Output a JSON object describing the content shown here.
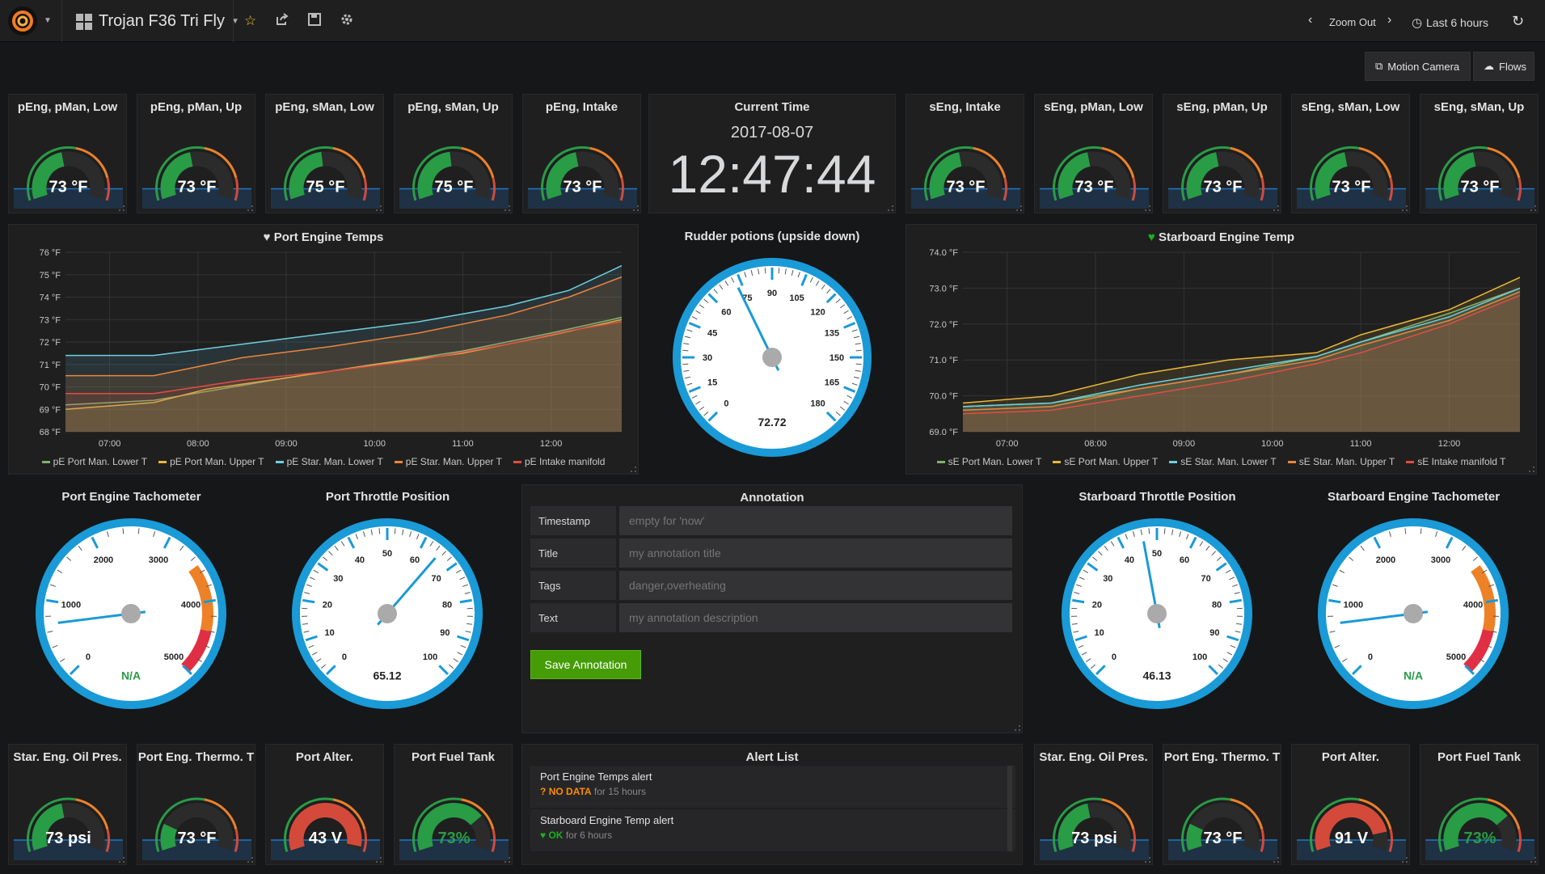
{
  "nav": {
    "dashboard_title": "Trojan F36 Tri Fly",
    "zoom_out": "Zoom Out",
    "time_range": "Last 6 hours"
  },
  "links": {
    "motion_camera": "Motion Camera",
    "flows": "Flows"
  },
  "top_gauges_left": [
    {
      "title": "pEng, pMan, Low",
      "value": "73 °F",
      "fraction": 0.45
    },
    {
      "title": "pEng, pMan, Up",
      "value": "73 °F",
      "fraction": 0.45
    },
    {
      "title": "pEng, sMan, Low",
      "value": "75 °F",
      "fraction": 0.47
    },
    {
      "title": "pEng, sMan, Up",
      "value": "75 °F",
      "fraction": 0.47
    },
    {
      "title": "pEng, Intake",
      "value": "73 °F",
      "fraction": 0.45
    }
  ],
  "top_gauges_right": [
    {
      "title": "sEng, Intake",
      "value": "73 °F",
      "fraction": 0.45
    },
    {
      "title": "sEng, pMan, Low",
      "value": "73 °F",
      "fraction": 0.45
    },
    {
      "title": "sEng, pMan, Up",
      "value": "73 °F",
      "fraction": 0.45
    },
    {
      "title": "sEng, sMan, Low",
      "value": "73 °F",
      "fraction": 0.45
    },
    {
      "title": "sEng, sMan, Up",
      "value": "73 °F",
      "fraction": 0.45
    }
  ],
  "current_time": {
    "title": "Current Time",
    "date": "2017-08-07",
    "time": "12:47:44"
  },
  "port_chart": {
    "title": "Port Engine Temps",
    "chart_data": {
      "type": "line",
      "ylim": [
        68,
        76
      ],
      "y_ticks": [
        "68 °F",
        "69 °F",
        "70 °F",
        "71 °F",
        "72 °F",
        "73 °F",
        "74 °F",
        "75 °F",
        "76 °F"
      ],
      "x_ticks": [
        "07:00",
        "08:00",
        "09:00",
        "10:00",
        "11:00",
        "12:00"
      ],
      "x_hours": [
        6.5,
        12.8
      ],
      "series": [
        {
          "name": "pE Port Man. Lower T",
          "color": "#7eb26d",
          "points": [
            [
              6.5,
              69.2
            ],
            [
              7.5,
              69.4
            ],
            [
              8.1,
              69.8
            ],
            [
              9.0,
              70.4
            ],
            [
              10.0,
              71.0
            ],
            [
              11.0,
              71.6
            ],
            [
              12.0,
              72.4
            ],
            [
              12.8,
              73.1
            ]
          ]
        },
        {
          "name": "pE Port Man. Upper T",
          "color": "#eab839",
          "points": [
            [
              6.5,
              69.0
            ],
            [
              7.5,
              69.3
            ],
            [
              8.1,
              69.9
            ],
            [
              9.0,
              70.4
            ],
            [
              10.0,
              71.0
            ],
            [
              11.0,
              71.5
            ],
            [
              12.0,
              72.3
            ],
            [
              12.8,
              73.0
            ]
          ]
        },
        {
          "name": "pE Star. Man. Lower T",
          "color": "#6ed0e0",
          "points": [
            [
              6.5,
              71.4
            ],
            [
              7.5,
              71.4
            ],
            [
              8.5,
              71.9
            ],
            [
              9.5,
              72.4
            ],
            [
              10.5,
              72.9
            ],
            [
              11.5,
              73.6
            ],
            [
              12.2,
              74.3
            ],
            [
              12.8,
              75.4
            ]
          ]
        },
        {
          "name": "pE Star. Man. Upper T",
          "color": "#ef843c",
          "points": [
            [
              6.5,
              70.5
            ],
            [
              7.5,
              70.5
            ],
            [
              8.5,
              71.3
            ],
            [
              9.5,
              71.8
            ],
            [
              10.5,
              72.4
            ],
            [
              11.5,
              73.2
            ],
            [
              12.2,
              74.0
            ],
            [
              12.8,
              74.9
            ]
          ]
        },
        {
          "name": "pE Intake manifold",
          "color": "#e24d42",
          "points": [
            [
              6.5,
              69.7
            ],
            [
              7.5,
              69.7
            ],
            [
              8.5,
              70.3
            ],
            [
              9.5,
              70.7
            ],
            [
              10.5,
              71.2
            ],
            [
              11.5,
              71.9
            ],
            [
              12.2,
              72.5
            ],
            [
              12.8,
              72.9
            ]
          ]
        }
      ]
    }
  },
  "rudder": {
    "title": "Rudder potions (upside down)",
    "value": "72.72",
    "fraction": 0.404,
    "ticks": [
      "0",
      "15",
      "30",
      "45",
      "60",
      "75",
      "90",
      "105",
      "120",
      "135",
      "150",
      "165",
      "180"
    ]
  },
  "star_chart": {
    "title": "Starboard Engine Temp",
    "chart_data": {
      "type": "line",
      "ylim": [
        69,
        74
      ],
      "y_ticks": [
        "69.0 °F",
        "70.0 °F",
        "71.0 °F",
        "72.0 °F",
        "73.0 °F",
        "74.0 °F"
      ],
      "x_ticks": [
        "07:00",
        "08:00",
        "09:00",
        "10:00",
        "11:00",
        "12:00"
      ],
      "x_hours": [
        6.5,
        12.8
      ],
      "series": [
        {
          "name": "sE Port Man. Lower T",
          "color": "#7eb26d",
          "points": [
            [
              6.5,
              69.7
            ],
            [
              7.5,
              69.8
            ],
            [
              8.5,
              70.2
            ],
            [
              9.5,
              70.6
            ],
            [
              10.5,
              71.1
            ],
            [
              11.0,
              71.5
            ],
            [
              12.0,
              72.3
            ],
            [
              12.8,
              73.0
            ]
          ]
        },
        {
          "name": "sE Port Man. Upper T",
          "color": "#eab839",
          "points": [
            [
              6.5,
              69.8
            ],
            [
              7.5,
              70.0
            ],
            [
              8.5,
              70.6
            ],
            [
              9.5,
              71.0
            ],
            [
              10.5,
              71.2
            ],
            [
              11.0,
              71.7
            ],
            [
              12.0,
              72.4
            ],
            [
              12.8,
              73.3
            ]
          ]
        },
        {
          "name": "sE Star. Man. Lower T",
          "color": "#6ed0e0",
          "points": [
            [
              6.5,
              69.7
            ],
            [
              7.5,
              69.8
            ],
            [
              8.5,
              70.3
            ],
            [
              9.5,
              70.7
            ],
            [
              10.5,
              71.1
            ],
            [
              11.0,
              71.5
            ],
            [
              12.0,
              72.2
            ],
            [
              12.8,
              73.0
            ]
          ]
        },
        {
          "name": "sE Star. Man. Upper T",
          "color": "#ef843c",
          "points": [
            [
              6.5,
              69.6
            ],
            [
              7.5,
              69.7
            ],
            [
              8.5,
              70.2
            ],
            [
              9.5,
              70.6
            ],
            [
              10.5,
              71.0
            ],
            [
              11.0,
              71.4
            ],
            [
              12.0,
              72.1
            ],
            [
              12.8,
              72.9
            ]
          ]
        },
        {
          "name": "sE Intake manifold T",
          "color": "#e24d42",
          "points": [
            [
              6.5,
              69.5
            ],
            [
              7.5,
              69.6
            ],
            [
              8.5,
              70.0
            ],
            [
              9.5,
              70.4
            ],
            [
              10.5,
              70.9
            ],
            [
              11.0,
              71.2
            ],
            [
              12.0,
              72.0
            ],
            [
              12.8,
              72.8
            ]
          ]
        }
      ]
    }
  },
  "big_gauges": [
    {
      "title": "Port Engine Tachometer",
      "value": "N/A",
      "ticks": [
        "0",
        "1000",
        "2000",
        "3000",
        "4000",
        "5000"
      ],
      "fraction": 0.14,
      "bands": true
    },
    {
      "title": "Port Throttle Position",
      "value": "65.12",
      "ticks": [
        "0",
        "10",
        "20",
        "30",
        "40",
        "50",
        "60",
        "70",
        "80",
        "90",
        "100"
      ],
      "fraction": 0.6512,
      "bands": false
    },
    {
      "title": "Starboard Throttle Position",
      "value": "46.13",
      "ticks": [
        "0",
        "10",
        "20",
        "30",
        "40",
        "50",
        "60",
        "70",
        "80",
        "90",
        "100"
      ],
      "fraction": 0.4613,
      "bands": false
    },
    {
      "title": "Starboard Engine Tachometer",
      "value": "N/A",
      "ticks": [
        "0",
        "1000",
        "2000",
        "3000",
        "4000",
        "5000"
      ],
      "fraction": 0.14,
      "bands": true
    }
  ],
  "annotation": {
    "title": "Annotation",
    "fields": [
      {
        "label": "Timestamp",
        "placeholder": "empty for 'now'"
      },
      {
        "label": "Title",
        "placeholder": "my annotation title"
      },
      {
        "label": "Tags",
        "placeholder": "danger,overheating"
      },
      {
        "label": "Text",
        "placeholder": "my annotation description"
      }
    ],
    "save_label": "Save Annotation"
  },
  "alert_list": {
    "title": "Alert List",
    "items": [
      {
        "name": "Port Engine Temps alert",
        "state": "NO DATA",
        "since": "for 15 hours",
        "color": "#ff8c00"
      },
      {
        "name": "Starboard Engine Temp alert",
        "state": "OK",
        "since": "for 6 hours",
        "color": "#1ab21a"
      }
    ]
  },
  "bottom_gauges_left": [
    {
      "title": "Star. Eng. Oil Pres.",
      "value": "73 psi",
      "fraction": 0.45,
      "color": "#299c46",
      "value_color": "#ffffff"
    },
    {
      "title": "Port Eng. Thermo. T",
      "value": "73 °F",
      "fraction": 0.2,
      "color": "#299c46",
      "value_color": "#ffffff"
    },
    {
      "title": "Port Alter.",
      "value": "43 V",
      "fraction": 0.97,
      "color": "#d44a3a",
      "value_color": "#ffffff"
    },
    {
      "title": "Port Fuel Tank",
      "value": "73%",
      "fraction": 0.73,
      "color": "#299c46",
      "value_color": "#299c46"
    }
  ],
  "bottom_gauges_right": [
    {
      "title": "Star. Eng. Oil Pres.",
      "value": "73 psi",
      "fraction": 0.45,
      "color": "#299c46",
      "value_color": "#ffffff"
    },
    {
      "title": "Port Eng. Thermo. T",
      "value": "73 °F",
      "fraction": 0.2,
      "color": "#299c46",
      "value_color": "#ffffff"
    },
    {
      "title": "Port Alter.",
      "value": "91 V",
      "fraction": 0.86,
      "color": "#d44a3a",
      "value_color": "#ffffff"
    },
    {
      "title": "Port Fuel Tank",
      "value": "73%",
      "fraction": 0.73,
      "color": "#299c46",
      "value_color": "#299c46"
    }
  ]
}
